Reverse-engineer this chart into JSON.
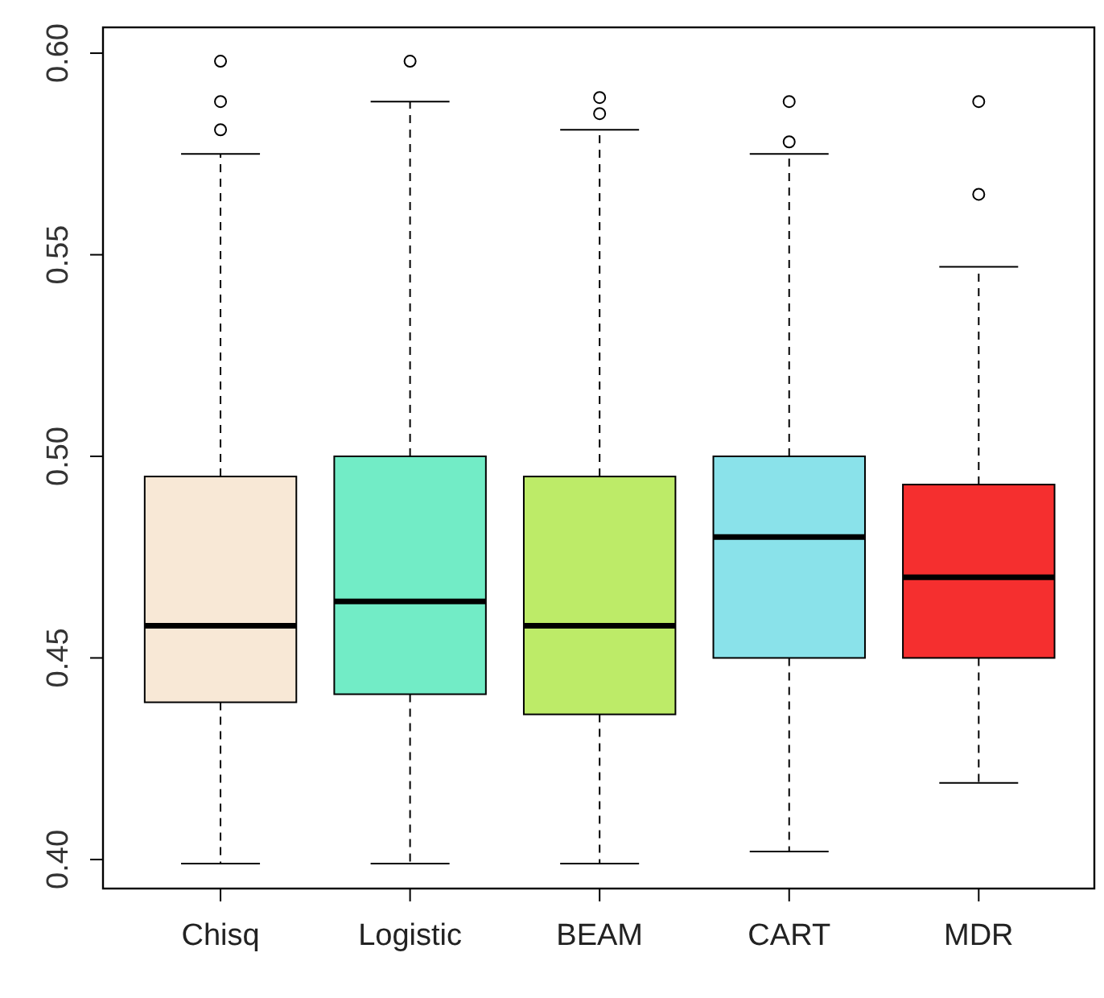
{
  "chart_data": {
    "type": "box",
    "categories": [
      "Chisq",
      "Logistic",
      "BEAM",
      "CART",
      "MDR"
    ],
    "colors": [
      "#f8e8d6",
      "#72ecc6",
      "#bdeb68",
      "#8ae2ea",
      "#f52f2f"
    ],
    "boxes": [
      {
        "low": 0.399,
        "q1": 0.439,
        "median": 0.458,
        "q3": 0.495,
        "high": 0.575,
        "outliers": [
          0.581,
          0.588,
          0.598
        ]
      },
      {
        "low": 0.399,
        "q1": 0.441,
        "median": 0.464,
        "q3": 0.5,
        "high": 0.588,
        "outliers": [
          0.598
        ]
      },
      {
        "low": 0.399,
        "q1": 0.436,
        "median": 0.458,
        "q3": 0.495,
        "high": 0.581,
        "outliers": [
          0.585,
          0.589
        ]
      },
      {
        "low": 0.402,
        "q1": 0.45,
        "median": 0.48,
        "q3": 0.5,
        "high": 0.575,
        "outliers": [
          0.578,
          0.588
        ]
      },
      {
        "low": 0.419,
        "q1": 0.45,
        "median": 0.47,
        "q3": 0.493,
        "high": 0.547,
        "outliers": [
          0.565,
          0.588
        ]
      }
    ],
    "ylim": [
      0.3928,
      0.6064
    ],
    "yticks": [
      {
        "value": 0.4,
        "label": "0.40"
      },
      {
        "value": 0.45,
        "label": "0.45"
      },
      {
        "value": 0.5,
        "label": "0.50"
      },
      {
        "value": 0.55,
        "label": "0.55"
      },
      {
        "value": 0.6,
        "label": "0.60"
      }
    ],
    "grid": false
  }
}
